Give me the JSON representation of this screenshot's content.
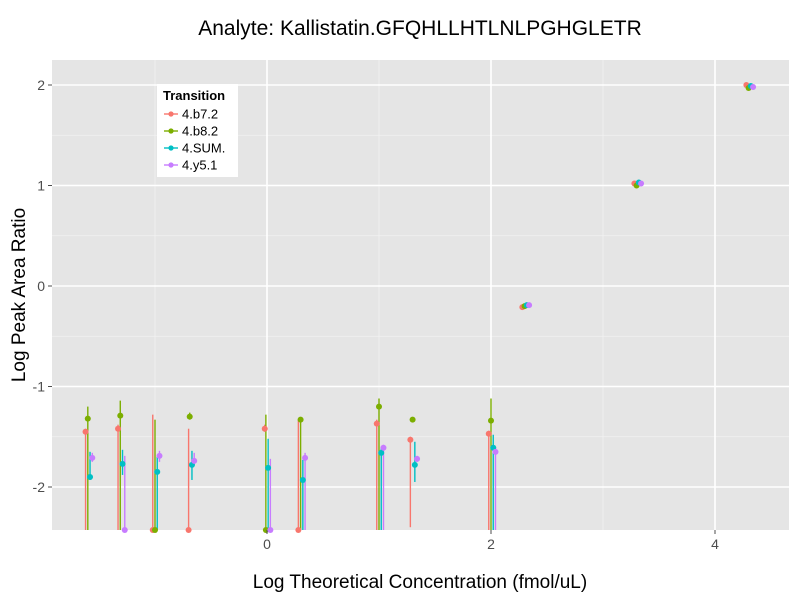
{
  "chart_data": {
    "type": "scatter",
    "title": "Analyte: Kallistatin.GFQHLLHTLNLPGHGLETR",
    "xlabel": "Log Theoretical Concentration (fmol/uL)",
    "ylabel": "Log Peak Area Ratio",
    "xlim": [
      -1.95,
      4.6
    ],
    "ylim": [
      -2.45,
      2.25
    ],
    "x_ticks": [
      0,
      2,
      4
    ],
    "x_tick_labels": [
      "0",
      "2",
      "4"
    ],
    "y_ticks": [
      -2,
      -1,
      0,
      1,
      2
    ],
    "y_tick_labels": [
      "-2",
      "-1",
      "0",
      "1",
      "2"
    ],
    "grid": true,
    "legend": {
      "title": "Transition",
      "placement": "top-left",
      "entries": [
        "4.b7.2",
        "4.b8.2",
        "4.SUM.",
        "4.y5.1"
      ]
    },
    "series": [
      {
        "name": "4.b7.2",
        "color": "#F8766D",
        "points": [
          {
            "x": -1.62,
            "y": -1.45,
            "ylow": -2.45,
            "yhigh": -1.42
          },
          {
            "x": -1.33,
            "y": -1.42,
            "ylow": -2.45,
            "yhigh": -1.38
          },
          {
            "x": -1.02,
            "y": -2.43,
            "ylow": -2.45,
            "yhigh": -1.28
          },
          {
            "x": -0.7,
            "y": -2.43,
            "ylow": -2.45,
            "yhigh": -1.42
          },
          {
            "x": -0.02,
            "y": -1.42,
            "ylow": -1.45,
            "yhigh": -1.38
          },
          {
            "x": 0.28,
            "y": -2.43,
            "ylow": -2.45,
            "yhigh": -1.33
          },
          {
            "x": 0.98,
            "y": -1.37,
            "ylow": -2.45,
            "yhigh": -1.33
          },
          {
            "x": 1.28,
            "y": -1.53,
            "ylow": -2.4,
            "yhigh": -1.5
          },
          {
            "x": 1.98,
            "y": -1.47,
            "ylow": -2.45,
            "yhigh": -1.44
          },
          {
            "x": 2.28,
            "y": -0.21
          },
          {
            "x": 3.28,
            "y": 1.02
          },
          {
            "x": 4.28,
            "y": 2.0
          }
        ]
      },
      {
        "name": "4.b8.2",
        "color": "#7CAE00",
        "points": [
          {
            "x": -1.6,
            "y": -1.32,
            "ylow": -2.45,
            "yhigh": -1.2
          },
          {
            "x": -1.31,
            "y": -1.29,
            "ylow": -2.45,
            "yhigh": -1.14
          },
          {
            "x": -1.0,
            "y": -2.43,
            "ylow": -2.45,
            "yhigh": -1.33
          },
          {
            "x": -0.69,
            "y": -1.3,
            "ylow": -1.33,
            "yhigh": -1.26
          },
          {
            "x": -0.01,
            "y": -2.43,
            "ylow": -2.45,
            "yhigh": -1.28
          },
          {
            "x": 0.3,
            "y": -1.33,
            "ylow": -2.45,
            "yhigh": -1.31
          },
          {
            "x": 1.0,
            "y": -1.2,
            "ylow": -2.45,
            "yhigh": -1.12
          },
          {
            "x": 1.3,
            "y": -1.33,
            "ylow": -1.35,
            "yhigh": -1.31
          },
          {
            "x": 2.0,
            "y": -1.34,
            "ylow": -2.45,
            "yhigh": -1.12
          },
          {
            "x": 2.3,
            "y": -0.2
          },
          {
            "x": 3.3,
            "y": 1.0
          },
          {
            "x": 4.3,
            "y": 1.97
          }
        ]
      },
      {
        "name": "4.SUM.",
        "color": "#00BFC4",
        "points": [
          {
            "x": -1.58,
            "y": -1.9,
            "ylow": -1.93,
            "yhigh": -1.65
          },
          {
            "x": -1.29,
            "y": -1.77,
            "ylow": -1.88,
            "yhigh": -1.63
          },
          {
            "x": -0.98,
            "y": -1.85,
            "ylow": -2.45,
            "yhigh": -1.7
          },
          {
            "x": -0.67,
            "y": -1.78,
            "ylow": -1.93,
            "yhigh": -1.64
          },
          {
            "x": 0.01,
            "y": -1.81,
            "ylow": -2.45,
            "yhigh": -1.52
          },
          {
            "x": 0.32,
            "y": -1.93,
            "ylow": -2.45,
            "yhigh": -1.73
          },
          {
            "x": 1.02,
            "y": -1.66,
            "ylow": -2.45,
            "yhigh": -1.6
          },
          {
            "x": 1.32,
            "y": -1.78,
            "ylow": -1.95,
            "yhigh": -1.55
          },
          {
            "x": 2.02,
            "y": -1.61,
            "ylow": -2.45,
            "yhigh": -1.48
          },
          {
            "x": 2.32,
            "y": -0.19
          },
          {
            "x": 3.32,
            "y": 1.03
          },
          {
            "x": 4.32,
            "y": 1.99
          }
        ]
      },
      {
        "name": "4.y5.1",
        "color": "#C77CFF",
        "points": [
          {
            "x": -1.56,
            "y": -1.71,
            "ylow": -1.75,
            "yhigh": -1.66
          },
          {
            "x": -1.27,
            "y": -2.43,
            "ylow": -2.45,
            "yhigh": -1.69
          },
          {
            "x": -0.96,
            "y": -1.69,
            "ylow": -1.75,
            "yhigh": -1.64
          },
          {
            "x": -0.65,
            "y": -1.74,
            "ylow": -1.78,
            "yhigh": -1.66
          },
          {
            "x": 0.03,
            "y": -2.43,
            "ylow": -2.45,
            "yhigh": -1.72
          },
          {
            "x": 0.34,
            "y": -1.71,
            "ylow": -2.45,
            "yhigh": -1.66
          },
          {
            "x": 1.04,
            "y": -1.61,
            "ylow": -2.45,
            "yhigh": -1.58
          },
          {
            "x": 1.34,
            "y": -1.72,
            "ylow": -1.75,
            "yhigh": -1.69
          },
          {
            "x": 2.04,
            "y": -1.65,
            "ylow": -2.45,
            "yhigh": -1.6
          },
          {
            "x": 2.34,
            "y": -0.19
          },
          {
            "x": 3.34,
            "y": 1.02
          },
          {
            "x": 4.34,
            "y": 1.98
          }
        ]
      }
    ]
  }
}
